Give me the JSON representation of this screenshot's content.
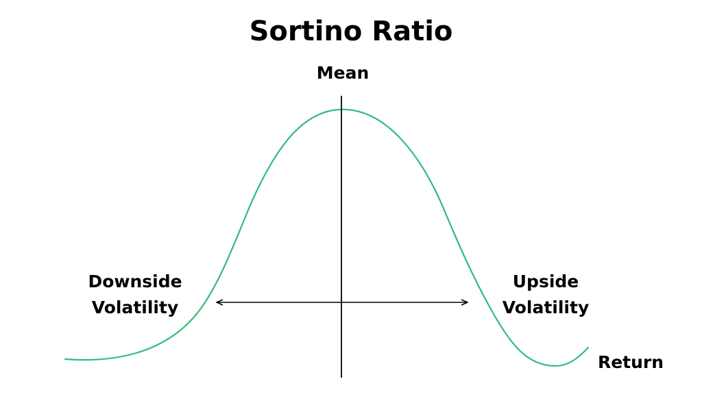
{
  "title": "Sortino Ratio",
  "labels": {
    "mean": "Mean",
    "downside_line1": "Downside",
    "downside_line2": "Volatility",
    "upside_line1": "Upside",
    "upside_line2": "Volatility",
    "return": "Return"
  },
  "colors": {
    "curve": "#2ebd7a",
    "axis": "#000000",
    "text": "#000000"
  }
}
